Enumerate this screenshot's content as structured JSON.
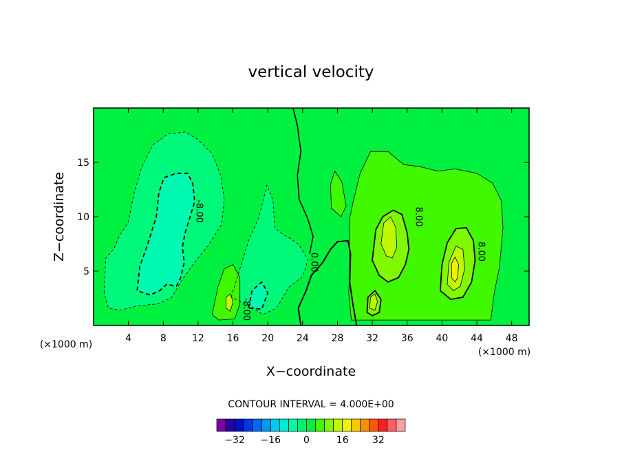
{
  "chart_data": {
    "type": "heatmap",
    "title": "vertical velocity",
    "xlabel": "X−coordinate",
    "ylabel": "Z−coordinate",
    "x_unit": "(×1000 m)",
    "xlim": [
      0,
      50
    ],
    "ylim": [
      0,
      20
    ],
    "x_ticks": [
      4,
      8,
      12,
      16,
      20,
      24,
      28,
      32,
      36,
      40,
      44,
      48
    ],
    "y_ticks": [
      5,
      10,
      15
    ],
    "contour_interval": "CONTOUR INTERVAL = 4.000E+00",
    "contour_labels": [
      {
        "text": "-8.00",
        "x": 11.8,
        "z": 10.5
      },
      {
        "text": "0.00",
        "x": 25.0,
        "z": 5.8
      },
      {
        "text": "-8.00",
        "x": 17.2,
        "z": 1.5
      },
      {
        "text": "8.00",
        "x": 37.0,
        "z": 10.0
      },
      {
        "text": "8.00",
        "x": 44.2,
        "z": 6.8
      }
    ],
    "colorbar": {
      "levels": [
        -36,
        -32,
        -28,
        -24,
        -20,
        -16,
        -12,
        -8,
        -4,
        0,
        4,
        8,
        12,
        16,
        20,
        24,
        28,
        32,
        36
      ],
      "colors": [
        "#7a00a8",
        "#2a00a0",
        "#0010c8",
        "#0038e8",
        "#0068f0",
        "#0098f0",
        "#00c8f0",
        "#00e8d8",
        "#00f8a8",
        "#00f070",
        "#00f040",
        "#40f800",
        "#80f800",
        "#c0f800",
        "#f0f000",
        "#f8c800",
        "#f89000",
        "#f85800",
        "#f82020",
        "#f86060",
        "#f8a0a0"
      ],
      "tick_labels": [
        "−32",
        "−16",
        "0",
        "16",
        "32"
      ],
      "tick_values": [
        -32,
        -16,
        0,
        16,
        32
      ]
    },
    "field_colors": {
      "neg8": "#00f8b0",
      "neg4": "#00f87a",
      "base": "#00f040",
      "pos4": "#40f800",
      "pos8": "#80f800",
      "pos12": "#c0f800",
      "pos16": "#f0f000"
    }
  }
}
